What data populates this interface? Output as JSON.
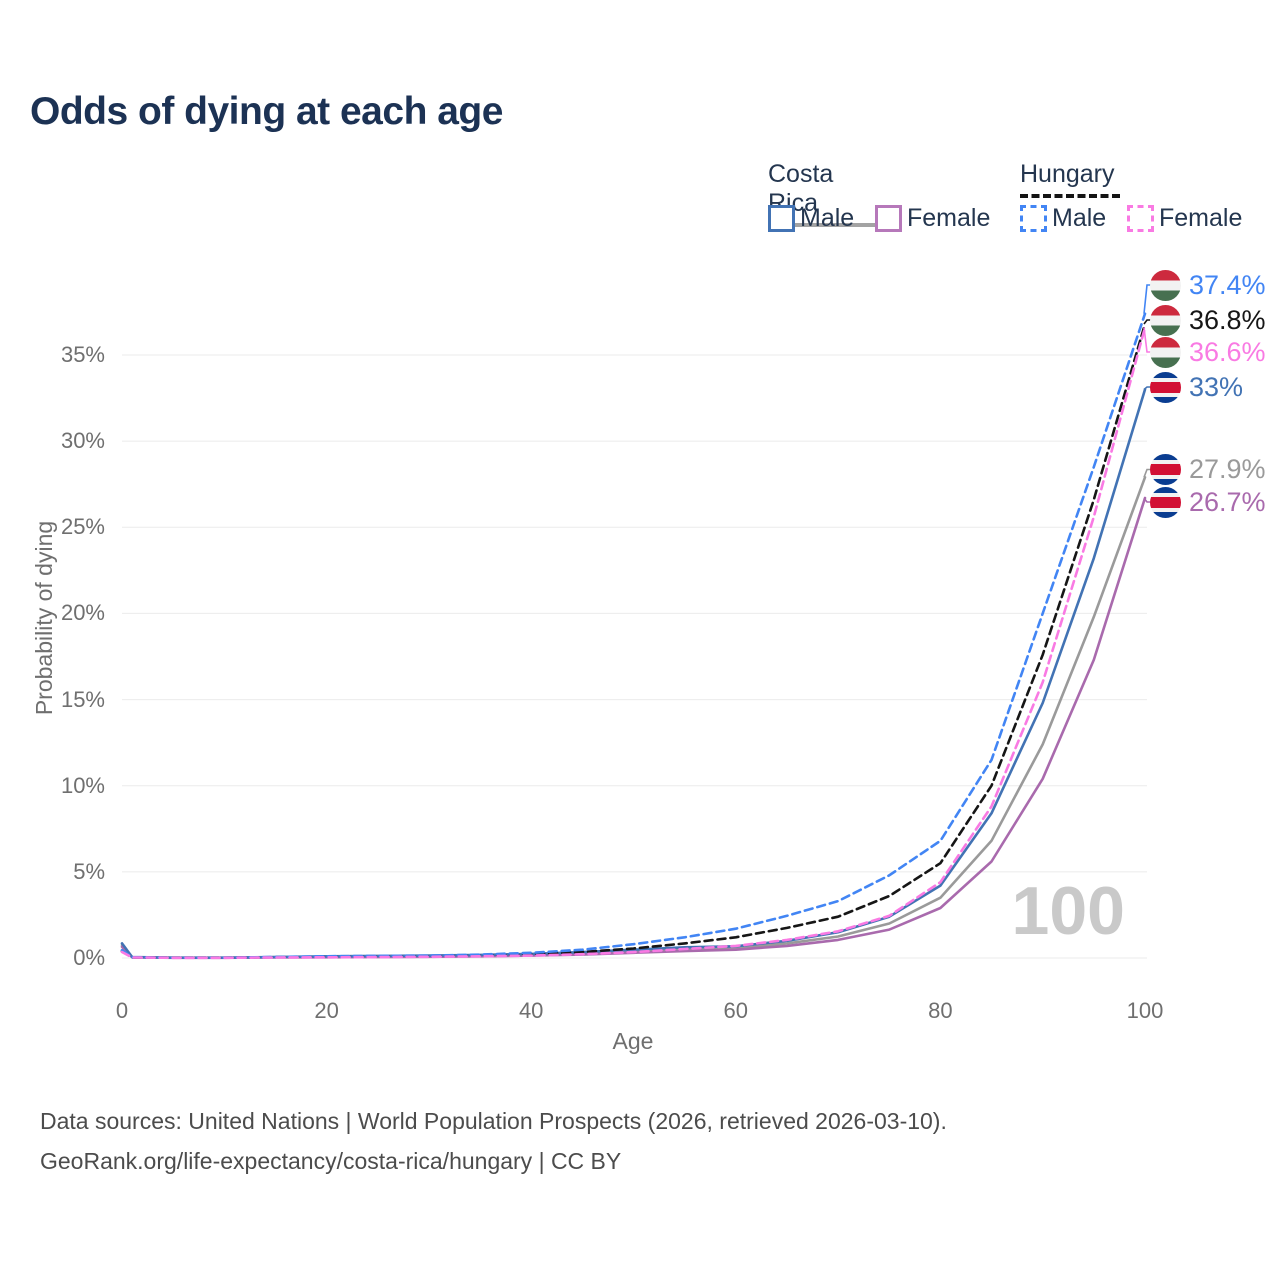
{
  "page": {
    "title": "Odds of dying at each age"
  },
  "legend": {
    "costa_rica": "Costa Rica",
    "hungary": "Hungary",
    "male": "Male",
    "female": "Female"
  },
  "chart_data": {
    "type": "line",
    "title": "Odds of dying at each age",
    "xlabel": "Age",
    "ylabel": "Probability of dying",
    "xlim": [
      0,
      100
    ],
    "ylim": [
      0,
      38.5
    ],
    "xticks": [
      0,
      20,
      40,
      60,
      80,
      100
    ],
    "yticks": [
      0,
      5,
      10,
      15,
      20,
      25,
      30,
      35
    ],
    "ytick_format": "percent",
    "grid": "horizontal",
    "legend_position": "top-right",
    "watermark": "100",
    "x": [
      0,
      1,
      5,
      10,
      15,
      20,
      25,
      30,
      35,
      40,
      45,
      50,
      55,
      60,
      65,
      70,
      75,
      80,
      85,
      90,
      95,
      100
    ],
    "series": [
      {
        "id": "hungary-male",
        "name": "Hungary Male",
        "country": "Hungary",
        "sex": "Male",
        "color": "#4285f4",
        "dashed": true,
        "end_label": "37.4%",
        "values": [
          0.45,
          0.04,
          0.02,
          0.02,
          0.06,
          0.1,
          0.12,
          0.14,
          0.2,
          0.3,
          0.48,
          0.8,
          1.2,
          1.7,
          2.45,
          3.3,
          4.8,
          6.8,
          11.5,
          20.0,
          28.5,
          37.4
        ]
      },
      {
        "id": "hungary-both",
        "name": "Hungary (both sexes)",
        "country": "Hungary",
        "sex": "Both",
        "color": "#161616",
        "dashed": true,
        "end_label": "36.8%",
        "values": [
          0.4,
          0.03,
          0.015,
          0.015,
          0.045,
          0.07,
          0.09,
          0.11,
          0.15,
          0.22,
          0.35,
          0.55,
          0.85,
          1.2,
          1.75,
          2.4,
          3.6,
          5.5,
          10.0,
          17.6,
          26.6,
          36.8
        ]
      },
      {
        "id": "hungary-female",
        "name": "Hungary Female",
        "country": "Hungary",
        "sex": "Female",
        "color": "#f97ae3",
        "dashed": true,
        "end_label": "36.6%",
        "values": [
          0.35,
          0.03,
          0.01,
          0.01,
          0.03,
          0.04,
          0.05,
          0.07,
          0.1,
          0.14,
          0.22,
          0.34,
          0.52,
          0.7,
          1.05,
          1.55,
          2.45,
          4.4,
          8.8,
          16.0,
          25.6,
          36.6
        ]
      },
      {
        "id": "costa-rica-male",
        "name": "Costa Rica Male",
        "country": "Costa Rica",
        "sex": "Male",
        "color": "#4273b4",
        "dashed": false,
        "end_label": "33%",
        "values": [
          0.85,
          0.05,
          0.02,
          0.02,
          0.06,
          0.1,
          0.12,
          0.14,
          0.18,
          0.24,
          0.34,
          0.48,
          0.62,
          0.68,
          1.0,
          1.5,
          2.4,
          4.2,
          8.4,
          14.8,
          23.2,
          33.0
        ]
      },
      {
        "id": "costa-rica-both",
        "name": "Costa Rica (both sexes)",
        "country": "Costa Rica",
        "sex": "Both",
        "color": "#9a9a9a",
        "dashed": false,
        "end_label": "27.9%",
        "values": [
          0.75,
          0.04,
          0.015,
          0.015,
          0.045,
          0.07,
          0.09,
          0.11,
          0.14,
          0.19,
          0.27,
          0.38,
          0.5,
          0.58,
          0.85,
          1.25,
          2.0,
          3.5,
          6.8,
          12.4,
          19.8,
          27.9
        ]
      },
      {
        "id": "costa-rica-female",
        "name": "Costa Rica Female",
        "country": "Costa Rica",
        "sex": "Female",
        "color": "#a96aad",
        "dashed": false,
        "end_label": "26.7%",
        "values": [
          0.65,
          0.04,
          0.01,
          0.01,
          0.03,
          0.04,
          0.05,
          0.07,
          0.1,
          0.14,
          0.2,
          0.3,
          0.4,
          0.48,
          0.7,
          1.05,
          1.65,
          2.9,
          5.6,
          10.4,
          17.3,
          26.7
        ]
      }
    ]
  },
  "footer": {
    "line1": "Data sources: United Nations | World Population Prospects (2026, retrieved 2026-03-10).",
    "line2": "GeoRank.org/life-expectancy/costa-rica/hungary | CC BY"
  }
}
